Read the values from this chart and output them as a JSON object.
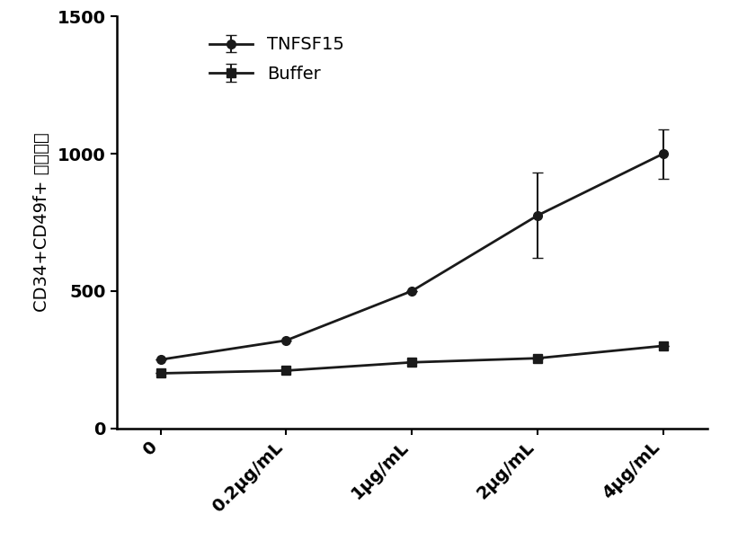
{
  "x_positions": [
    0,
    1,
    2,
    3,
    4
  ],
  "x_labels": [
    "0",
    "0.2μg/mL",
    "1μg/mL",
    "2μg/mL",
    "4μg/mL"
  ],
  "tnfsf15_y": [
    250,
    320,
    500,
    775,
    1000
  ],
  "tnfsf15_yerr": [
    0,
    0,
    0,
    155,
    90
  ],
  "buffer_y": [
    200,
    210,
    240,
    255,
    300
  ],
  "buffer_yerr": [
    0,
    0,
    0,
    0,
    0
  ],
  "ylabel": "CD34+CD49f+ 细胞数量",
  "ylim": [
    0,
    1500
  ],
  "yticks": [
    0,
    500,
    1000,
    1500
  ],
  "line_color": "#1a1a1a",
  "legend_labels": [
    "TNFSF15",
    "Buffer"
  ],
  "title": "",
  "background_color": "#ffffff",
  "marker_tnfsf15": "o",
  "marker_buffer": "s",
  "markersize": 7,
  "linewidth": 2.0,
  "capsize": 4,
  "tick_fontsize": 14,
  "label_fontsize": 14,
  "legend_fontsize": 14
}
